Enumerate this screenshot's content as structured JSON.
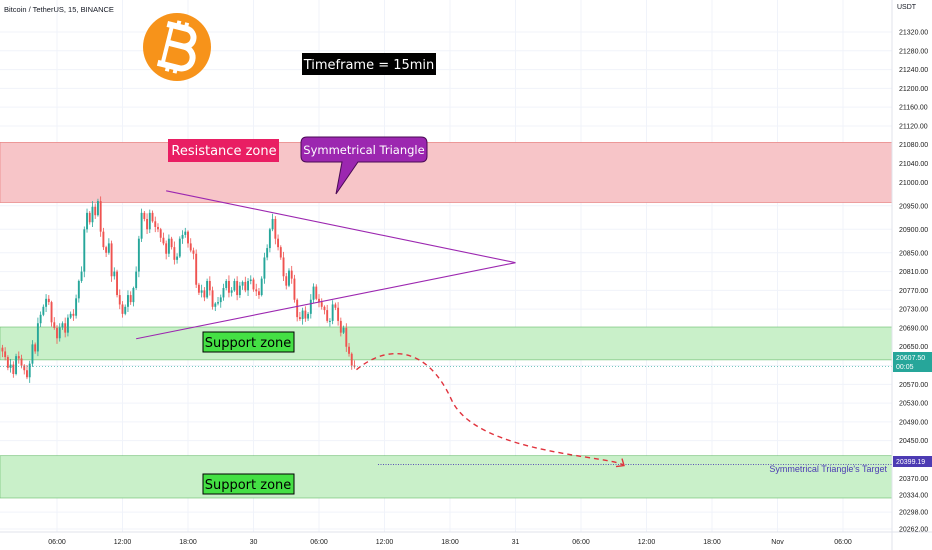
{
  "header": {
    "symbol": "Bitcoin / TetherUS, 15, BINANCE",
    "currency": "USDT"
  },
  "logo": {
    "name": "bitcoin-logo",
    "color": "#F7931A"
  },
  "annotations": {
    "timeframe": "Timeframe = 15min",
    "resistance": "Resistance zone",
    "pattern": "Symmetrical Triangle",
    "support_upper": "Support zone",
    "support_lower": "Support zone",
    "target": "Symmetrical Triangle's Target"
  },
  "price_tags": {
    "last_price": "20607.50",
    "countdown": "00:05",
    "target_price": "20399.19"
  },
  "colors": {
    "up": "#26a69a",
    "down": "#ef5350",
    "resistance_zone": "#f7c5c8",
    "support_zone": "#c9f0c9",
    "triangle": "#9c27b0",
    "projection": "#e0333d",
    "last_price_tag": "#26a69a",
    "target_tag": "#4c3bb3"
  },
  "chart_data": {
    "type": "candlestick",
    "title": "Bitcoin / TetherUS, 15, BINANCE",
    "timeframe_minutes": 15,
    "x_ticks": [
      "06:00",
      "12:00",
      "18:00",
      "30",
      "06:00",
      "12:00",
      "18:00",
      "31",
      "06:00",
      "12:00",
      "18:00",
      "Nov",
      "06:00"
    ],
    "y_ticks": [
      21320,
      21280,
      21240,
      21200,
      21160,
      21120,
      21080,
      21040,
      21000,
      20950,
      20900,
      20850,
      20810,
      20770,
      20730,
      20690,
      20650,
      20610,
      20570,
      20530,
      20490,
      20450,
      20410,
      20370,
      20334,
      20298,
      20262
    ],
    "ylim": [
      20245,
      21345
    ],
    "resistance_zone": [
      20957,
      21085
    ],
    "support_zone_upper": [
      20622,
      20692
    ],
    "support_zone_lower": [
      20328,
      20418
    ],
    "triangle_upper_line": {
      "from": [
        "29 16:00",
        20982
      ],
      "to": [
        "31 00:00",
        20829
      ]
    },
    "triangle_lower_line": {
      "from": [
        "29 13:15",
        20667
      ],
      "to": [
        "31 00:00",
        20829
      ]
    },
    "projected_target": 20399.19,
    "last_price": 20607.5,
    "closes": [
      20640,
      20628,
      20605,
      20612,
      20592,
      20630,
      20625,
      20610,
      20600,
      20585,
      20614,
      20655,
      20640,
      20700,
      20718,
      20735,
      20752,
      20745,
      20702,
      20690,
      20668,
      20691,
      20700,
      20680,
      20712,
      20720,
      20716,
      20753,
      20790,
      20810,
      20900,
      20935,
      20915,
      20948,
      20930,
      20960,
      20895,
      20862,
      20850,
      20870,
      20800,
      20810,
      20760,
      20740,
      20720,
      20735,
      20760,
      20745,
      20775,
      20810,
      20880,
      20935,
      20922,
      20900,
      20935,
      20917,
      20905,
      20900,
      20882,
      20870,
      20848,
      20880,
      20862,
      20835,
      20842,
      20880,
      20888,
      20895,
      20870,
      20855,
      20848,
      20782,
      20765,
      20770,
      20755,
      20790,
      20770,
      20735,
      20742,
      20745,
      20755,
      20775,
      20790,
      20765,
      20770,
      20790,
      20760,
      20780,
      20788,
      20770,
      20790,
      20793,
      20772,
      20768,
      20760,
      20795,
      20840,
      20860,
      20900,
      20922,
      20880,
      20862,
      20840,
      20800,
      20780,
      20812,
      20795,
      20750,
      20713,
      20709,
      20727,
      20710,
      20720,
      20750,
      20778,
      20752,
      20745,
      20735,
      20728,
      20705,
      20705,
      20740,
      20733,
      20705,
      20680,
      20690,
      20650,
      20635,
      20610,
      20607.5
    ]
  }
}
